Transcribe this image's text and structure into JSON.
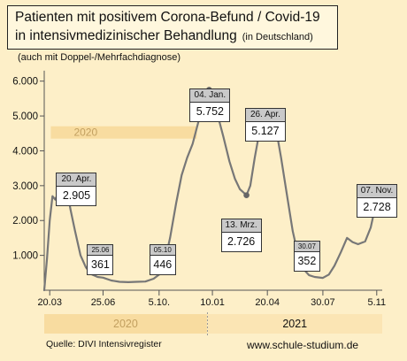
{
  "title": {
    "line1": "Patienten mit positivem Corona-Befund / Covid-19",
    "line2": "in intensivmedizinischer Behandlung",
    "note": "(in Deutschland)"
  },
  "subtitle": "(auch mit Doppel-/Mehrfachdiagnose)",
  "source": "Quelle: DIVI Intensivregister",
  "website": "www.schule-studium.de",
  "colors": {
    "background": "#fdefc8",
    "year_band": "#f8dca0",
    "line": "#777777",
    "marker": "#666666",
    "callout_header": "#c9c9c9"
  },
  "chart_data": {
    "type": "line",
    "ylim": [
      0,
      6500
    ],
    "yticks": [
      1000,
      2000,
      3000,
      4000,
      5000,
      6000
    ],
    "ytick_labels": [
      "1.000",
      "2.000",
      "3.000",
      "4.000",
      "5.000",
      "6.000"
    ],
    "xlim": [
      "2020-03-10",
      "2021-11-15"
    ],
    "xticks": [
      {
        "date": "2020-03-20",
        "label": "20.03"
      },
      {
        "date": "2020-06-25",
        "label": "25.06"
      },
      {
        "date": "2020-10-05",
        "label": "5.10."
      },
      {
        "date": "2021-01-10",
        "label": "10.01"
      },
      {
        "date": "2021-04-20",
        "label": "20.04"
      },
      {
        "date": "2021-07-30",
        "label": "30.07"
      },
      {
        "date": "2021-11-05",
        "label": "5.11"
      }
    ],
    "year_labels": [
      {
        "label": "2020",
        "start": "2020-03-10",
        "end": "2020-12-31"
      },
      {
        "label": "2021",
        "start": "2021-01-01",
        "end": "2021-11-15"
      }
    ],
    "inset_year_label": "2020",
    "series": [
      {
        "points": [
          [
            "2020-03-10",
            0
          ],
          [
            "2020-03-15",
            900
          ],
          [
            "2020-03-20",
            2000
          ],
          [
            "2020-03-25",
            2700
          ],
          [
            "2020-03-30",
            2600
          ],
          [
            "2020-04-05",
            2800
          ],
          [
            "2020-04-10",
            2700
          ],
          [
            "2020-04-14",
            2850
          ],
          [
            "2020-04-20",
            2905
          ],
          [
            "2020-04-27",
            2300
          ],
          [
            "2020-05-05",
            1700
          ],
          [
            "2020-05-15",
            1000
          ],
          [
            "2020-05-25",
            650
          ],
          [
            "2020-06-05",
            450
          ],
          [
            "2020-06-15",
            380
          ],
          [
            "2020-06-25",
            361
          ],
          [
            "2020-07-10",
            280
          ],
          [
            "2020-07-25",
            240
          ],
          [
            "2020-08-10",
            230
          ],
          [
            "2020-08-25",
            240
          ],
          [
            "2020-09-10",
            250
          ],
          [
            "2020-09-25",
            330
          ],
          [
            "2020-10-05",
            446
          ],
          [
            "2020-10-15",
            800
          ],
          [
            "2020-10-25",
            1500
          ],
          [
            "2020-11-05",
            2500
          ],
          [
            "2020-11-15",
            3300
          ],
          [
            "2020-11-25",
            3800
          ],
          [
            "2020-12-05",
            4200
          ],
          [
            "2020-12-15",
            4800
          ],
          [
            "2020-12-25",
            5400
          ],
          [
            "2021-01-04",
            5752
          ],
          [
            "2021-01-10",
            5600
          ],
          [
            "2021-01-20",
            5000
          ],
          [
            "2021-01-30",
            4400
          ],
          [
            "2021-02-10",
            3700
          ],
          [
            "2021-02-20",
            3200
          ],
          [
            "2021-03-01",
            2900
          ],
          [
            "2021-03-13",
            2726
          ],
          [
            "2021-03-20",
            3000
          ],
          [
            "2021-03-28",
            3800
          ],
          [
            "2021-04-05",
            4500
          ],
          [
            "2021-04-15",
            4900
          ],
          [
            "2021-04-26",
            5127
          ],
          [
            "2021-05-05",
            4700
          ],
          [
            "2021-05-15",
            3800
          ],
          [
            "2021-05-25",
            2800
          ],
          [
            "2021-06-05",
            1700
          ],
          [
            "2021-06-15",
            1000
          ],
          [
            "2021-06-25",
            600
          ],
          [
            "2021-07-05",
            430
          ],
          [
            "2021-07-15",
            380
          ],
          [
            "2021-07-30",
            352
          ],
          [
            "2021-08-10",
            450
          ],
          [
            "2021-08-20",
            700
          ],
          [
            "2021-09-01",
            1100
          ],
          [
            "2021-09-12",
            1500
          ],
          [
            "2021-09-22",
            1380
          ],
          [
            "2021-10-02",
            1320
          ],
          [
            "2021-10-15",
            1400
          ],
          [
            "2021-10-25",
            1800
          ],
          [
            "2021-11-07",
            2728
          ]
        ]
      }
    ],
    "annotations": [
      {
        "date": "2020-04-20",
        "value": 2905,
        "head": "20. Apr.",
        "text": "2.905",
        "marker": true
      },
      {
        "date": "2020-06-25",
        "value": 361,
        "head": "25.06",
        "text": "361",
        "marker": false
      },
      {
        "date": "2020-10-05",
        "value": 446,
        "head": "05.10",
        "text": "446",
        "marker": false
      },
      {
        "date": "2021-01-04",
        "value": 5752,
        "head": "04. Jan.",
        "text": "5.752",
        "marker": true
      },
      {
        "date": "2021-04-26",
        "value": 5127,
        "head": "26. Apr.",
        "text": "5.127",
        "marker": true
      },
      {
        "date": "2021-03-13",
        "value": 2726,
        "head": "13. Mrz.",
        "text": "2.726",
        "marker": true
      },
      {
        "date": "2021-07-30",
        "value": 352,
        "head": "30.07",
        "text": "352",
        "marker": false
      },
      {
        "date": "2021-11-07",
        "value": 2728,
        "head": "07. Nov.",
        "text": "2.728",
        "marker": true
      }
    ]
  }
}
